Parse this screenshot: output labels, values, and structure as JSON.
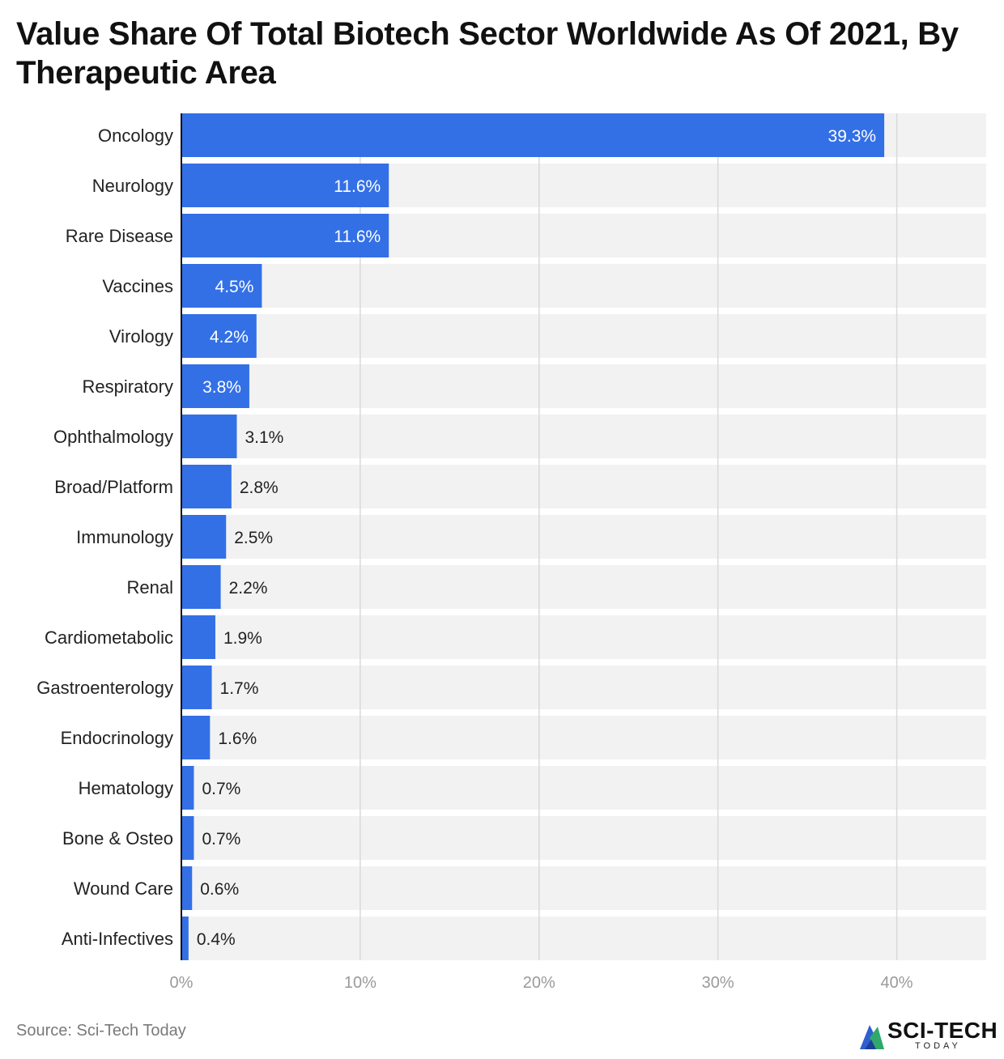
{
  "title": "Value Share Of Total Biotech Sector Worldwide As Of 2021, By Therapeutic Area",
  "source": "Source: Sci-Tech Today",
  "logo": {
    "name": "SCI-TECH",
    "tagline": "TODAY"
  },
  "colors": {
    "bar": "#3370e6",
    "track": "#f2f2f2",
    "grid": "#d9d9d9",
    "axis": "#111111",
    "tick": "#9a9a9a"
  },
  "chart_data": {
    "type": "bar",
    "orientation": "horizontal",
    "categories": [
      "Oncology",
      "Neurology",
      "Rare Disease",
      "Vaccines",
      "Virology",
      "Respiratory",
      "Ophthalmology",
      "Broad/Platform",
      "Immunology",
      "Renal",
      "Cardiometabolic",
      "Gastroenterology",
      "Endocrinology",
      "Hematology",
      "Bone & Osteo",
      "Wound Care",
      "Anti-Infectives"
    ],
    "values": [
      39.3,
      11.6,
      11.6,
      4.5,
      4.2,
      3.8,
      3.1,
      2.8,
      2.5,
      2.2,
      1.9,
      1.7,
      1.6,
      0.7,
      0.7,
      0.6,
      0.4
    ],
    "labels": [
      "39.3%",
      "11.6%",
      "11.6%",
      "4.5%",
      "4.2%",
      "3.8%",
      "3.1%",
      "2.8%",
      "2.5%",
      "2.2%",
      "1.9%",
      "1.7%",
      "1.6%",
      "0.7%",
      "0.7%",
      "0.6%",
      "0.4%"
    ],
    "xlim": [
      0,
      45
    ],
    "xticks": [
      0,
      10,
      20,
      30,
      40
    ],
    "xtick_labels": [
      "0%",
      "10%",
      "20%",
      "30%",
      "40%"
    ],
    "grid": true
  }
}
